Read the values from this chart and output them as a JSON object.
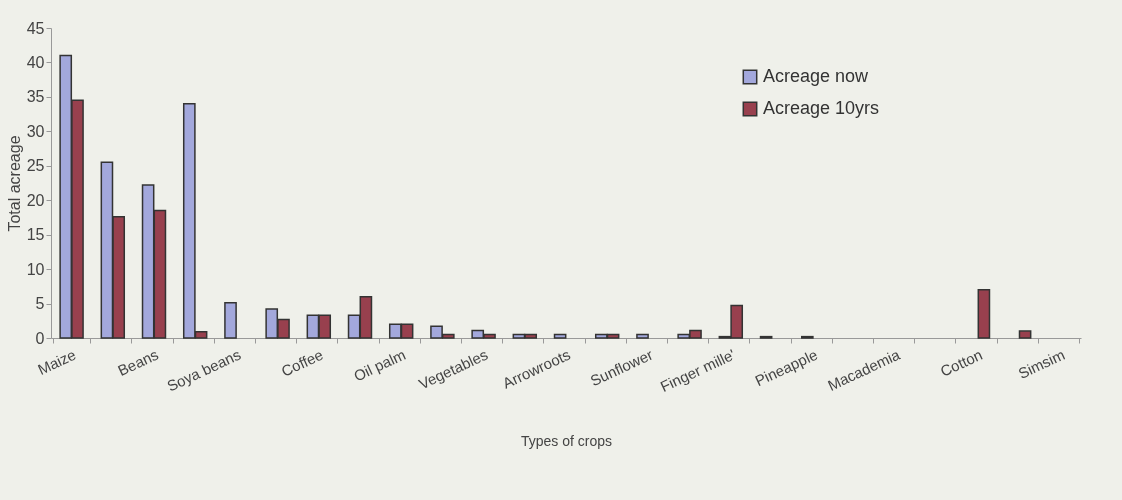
{
  "chart_data": {
    "type": "bar",
    "xlabel": "Types of crops",
    "ylabel": "Total acreage",
    "categories": [
      "Maize",
      null,
      "Beans",
      null,
      "Soya beans",
      null,
      "Coffee",
      null,
      "Oil palm",
      null,
      "Vegetables",
      null,
      "Arrowroots",
      null,
      "Sunflower",
      null,
      "Finger mille'",
      null,
      "Pineapple",
      null,
      "Macademia",
      null,
      "Cotton",
      null,
      "Simsim"
    ],
    "series": [
      {
        "name": "Acreage now",
        "color": "#a3a8dc",
        "values": [
          41,
          25.5,
          22.2,
          34,
          5.1,
          4.2,
          3.3,
          3.3,
          2,
          1.7,
          1.1,
          0.5,
          0.5,
          0.5,
          0.5,
          0.5,
          0.2,
          0.2,
          0.2,
          null,
          null,
          null,
          null,
          null,
          null
        ]
      },
      {
        "name": "Acreage 10yrs",
        "color": "#98404e",
        "values": [
          34.5,
          17.6,
          18.5,
          0.9,
          null,
          2.7,
          3.3,
          6,
          2,
          0.5,
          0.5,
          0.5,
          null,
          0.5,
          null,
          1.1,
          4.7,
          null,
          null,
          null,
          null,
          null,
          7,
          1,
          null
        ]
      }
    ],
    "ylim": [
      0,
      45
    ],
    "yticks": [
      0,
      5,
      10,
      15,
      20,
      25,
      30,
      35,
      40,
      45
    ],
    "grid": false,
    "legend": "top right"
  }
}
